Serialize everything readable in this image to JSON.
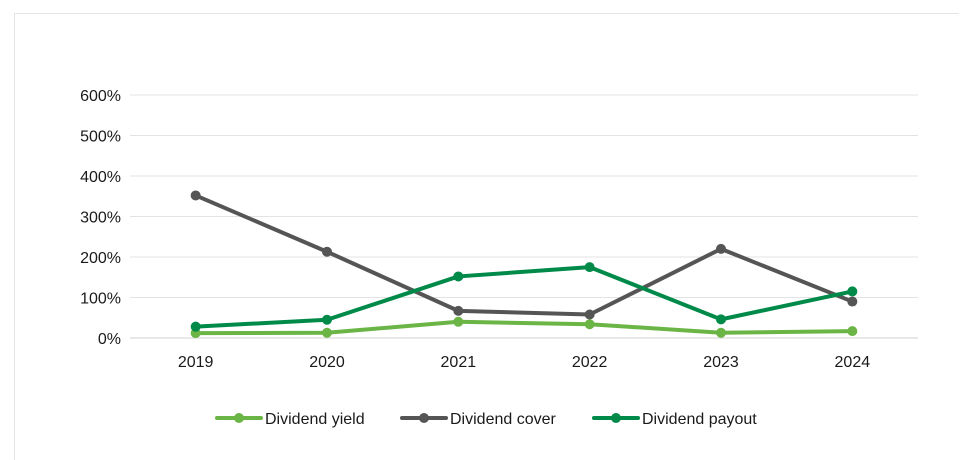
{
  "chart_data": {
    "type": "line",
    "title": "",
    "xlabel": "",
    "ylabel": "",
    "categories": [
      "2019",
      "2020",
      "2021",
      "2022",
      "2023",
      "2024"
    ],
    "ylim": [
      0,
      600
    ],
    "yticks": [
      0,
      100,
      200,
      300,
      400,
      500,
      600
    ],
    "ytick_labels": [
      "0%",
      "100%",
      "200%",
      "300%",
      "400%",
      "500%",
      "600%"
    ],
    "grid": true,
    "legend_position": "bottom",
    "series": [
      {
        "name": "Dividend yield",
        "color": "#6ab545",
        "values": [
          12,
          13,
          40,
          34,
          13,
          17
        ]
      },
      {
        "name": "Dividend cover",
        "color": "#555555",
        "values": [
          352,
          213,
          67,
          58,
          220,
          90
        ]
      },
      {
        "name": "Dividend payout",
        "color": "#008a4a",
        "values": [
          28,
          45,
          152,
          175,
          46,
          115
        ]
      }
    ]
  }
}
